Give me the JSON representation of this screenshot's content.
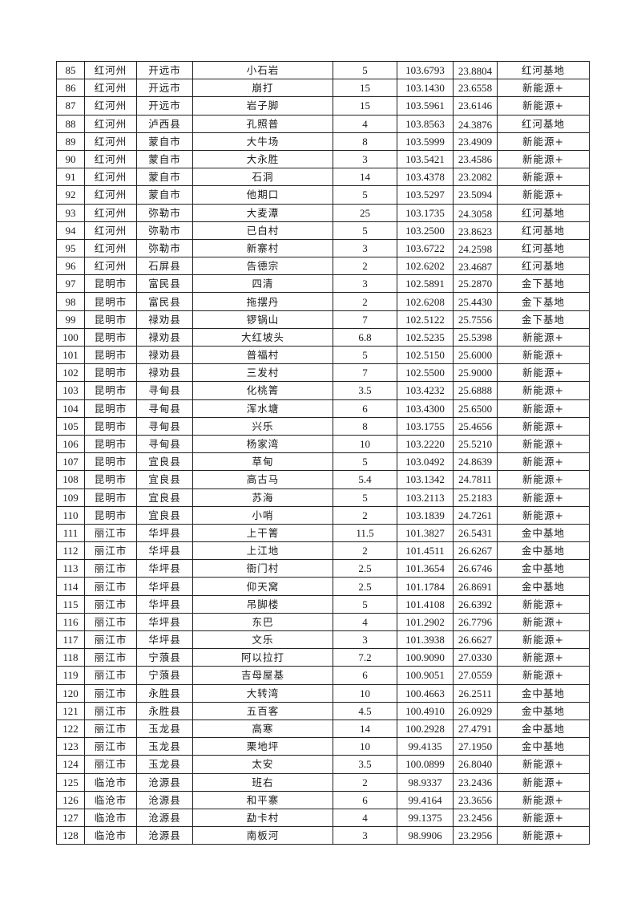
{
  "rows": [
    [
      "85",
      "红河州",
      "开远市",
      "小石岩",
      "5",
      "103.6793",
      "23.8804",
      "红河基地"
    ],
    [
      "86",
      "红河州",
      "开远市",
      "崩打",
      "15",
      "103.1430",
      "23.6558",
      "新能源+"
    ],
    [
      "87",
      "红河州",
      "开远市",
      "岩子脚",
      "15",
      "103.5961",
      "23.6146",
      "新能源+"
    ],
    [
      "88",
      "红河州",
      "泸西县",
      "孔照普",
      "4",
      "103.8563",
      "24.3876",
      "红河基地"
    ],
    [
      "89",
      "红河州",
      "蒙自市",
      "大牛场",
      "8",
      "103.5999",
      "23.4909",
      "新能源+"
    ],
    [
      "90",
      "红河州",
      "蒙自市",
      "大永胜",
      "3",
      "103.5421",
      "23.4586",
      "新能源+"
    ],
    [
      "91",
      "红河州",
      "蒙自市",
      "石洞",
      "14",
      "103.4378",
      "23.2082",
      "新能源+"
    ],
    [
      "92",
      "红河州",
      "蒙自市",
      "他期口",
      "5",
      "103.5297",
      "23.5094",
      "新能源+"
    ],
    [
      "93",
      "红河州",
      "弥勒市",
      "大麦潭",
      "25",
      "103.1735",
      "24.3058",
      "红河基地"
    ],
    [
      "94",
      "红河州",
      "弥勒市",
      "已白村",
      "5",
      "103.2500",
      "23.8623",
      "红河基地"
    ],
    [
      "95",
      "红河州",
      "弥勒市",
      "新寨村",
      "3",
      "103.6722",
      "24.2598",
      "红河基地"
    ],
    [
      "96",
      "红河州",
      "石屏县",
      "告德宗",
      "2",
      "102.6202",
      "23.4687",
      "红河基地"
    ],
    [
      "97",
      "昆明市",
      "富民县",
      "四清",
      "3",
      "102.5891",
      "25.2870",
      "金下基地"
    ],
    [
      "98",
      "昆明市",
      "富民县",
      "拖摆丹",
      "2",
      "102.6208",
      "25.4430",
      "金下基地"
    ],
    [
      "99",
      "昆明市",
      "禄劝县",
      "锣锅山",
      "7",
      "102.5122",
      "25.7556",
      "金下基地"
    ],
    [
      "100",
      "昆明市",
      "禄劝县",
      "大红坡头",
      "6.8",
      "102.5235",
      "25.5398",
      "新能源+"
    ],
    [
      "101",
      "昆明市",
      "禄劝县",
      "普福村",
      "5",
      "102.5150",
      "25.6000",
      "新能源+"
    ],
    [
      "102",
      "昆明市",
      "禄劝县",
      "三发村",
      "7",
      "102.5500",
      "25.9000",
      "新能源+"
    ],
    [
      "103",
      "昆明市",
      "寻甸县",
      "化桃箐",
      "3.5",
      "103.4232",
      "25.6888",
      "新能源+"
    ],
    [
      "104",
      "昆明市",
      "寻甸县",
      "浑水塘",
      "6",
      "103.4300",
      "25.6500",
      "新能源+"
    ],
    [
      "105",
      "昆明市",
      "寻甸县",
      "兴乐",
      "8",
      "103.1755",
      "25.4656",
      "新能源+"
    ],
    [
      "106",
      "昆明市",
      "寻甸县",
      "杨家湾",
      "10",
      "103.2220",
      "25.5210",
      "新能源+"
    ],
    [
      "107",
      "昆明市",
      "宜良县",
      "草甸",
      "5",
      "103.0492",
      "24.8639",
      "新能源+"
    ],
    [
      "108",
      "昆明市",
      "宜良县",
      "高古马",
      "5.4",
      "103.1342",
      "24.7811",
      "新能源+"
    ],
    [
      "109",
      "昆明市",
      "宜良县",
      "苏海",
      "5",
      "103.2113",
      "25.2183",
      "新能源+"
    ],
    [
      "110",
      "昆明市",
      "宜良县",
      "小哨",
      "2",
      "103.1839",
      "24.7261",
      "新能源+"
    ],
    [
      "111",
      "丽江市",
      "华坪县",
      "上干箐",
      "11.5",
      "101.3827",
      "26.5431",
      "金中基地"
    ],
    [
      "112",
      "丽江市",
      "华坪县",
      "上江地",
      "2",
      "101.4511",
      "26.6267",
      "金中基地"
    ],
    [
      "113",
      "丽江市",
      "华坪县",
      "衙门村",
      "2.5",
      "101.3654",
      "26.6746",
      "金中基地"
    ],
    [
      "114",
      "丽江市",
      "华坪县",
      "仰天窝",
      "2.5",
      "101.1784",
      "26.8691",
      "金中基地"
    ],
    [
      "115",
      "丽江市",
      "华坪县",
      "吊脚楼",
      "5",
      "101.4108",
      "26.6392",
      "新能源+"
    ],
    [
      "116",
      "丽江市",
      "华坪县",
      "东巴",
      "4",
      "101.2902",
      "26.7796",
      "新能源+"
    ],
    [
      "117",
      "丽江市",
      "华坪县",
      "文乐",
      "3",
      "101.3938",
      "26.6627",
      "新能源+"
    ],
    [
      "118",
      "丽江市",
      "宁蒗县",
      "阿以拉打",
      "7.2",
      "100.9090",
      "27.0330",
      "新能源+"
    ],
    [
      "119",
      "丽江市",
      "宁蒗县",
      "吉母屋基",
      "6",
      "100.9051",
      "27.0559",
      "新能源+"
    ],
    [
      "120",
      "丽江市",
      "永胜县",
      "大转湾",
      "10",
      "100.4663",
      "26.2511",
      "金中基地"
    ],
    [
      "121",
      "丽江市",
      "永胜县",
      "五百客",
      "4.5",
      "100.4910",
      "26.0929",
      "金中基地"
    ],
    [
      "122",
      "丽江市",
      "玉龙县",
      "高寒",
      "14",
      "100.2928",
      "27.4791",
      "金中基地"
    ],
    [
      "123",
      "丽江市",
      "玉龙县",
      "栗地坪",
      "10",
      "99.4135",
      "27.1950",
      "金中基地"
    ],
    [
      "124",
      "丽江市",
      "玉龙县",
      "太安",
      "3.5",
      "100.0899",
      "26.8040",
      "新能源+"
    ],
    [
      "125",
      "临沧市",
      "沧源县",
      "班右",
      "2",
      "98.9337",
      "23.2436",
      "新能源+"
    ],
    [
      "126",
      "临沧市",
      "沧源县",
      "和平寨",
      "6",
      "99.4164",
      "23.3656",
      "新能源+"
    ],
    [
      "127",
      "临沧市",
      "沧源县",
      "勐卡村",
      "4",
      "99.1375",
      "23.2456",
      "新能源+"
    ],
    [
      "128",
      "临沧市",
      "沧源县",
      "南板河",
      "3",
      "98.9906",
      "23.2956",
      "新能源+"
    ]
  ]
}
